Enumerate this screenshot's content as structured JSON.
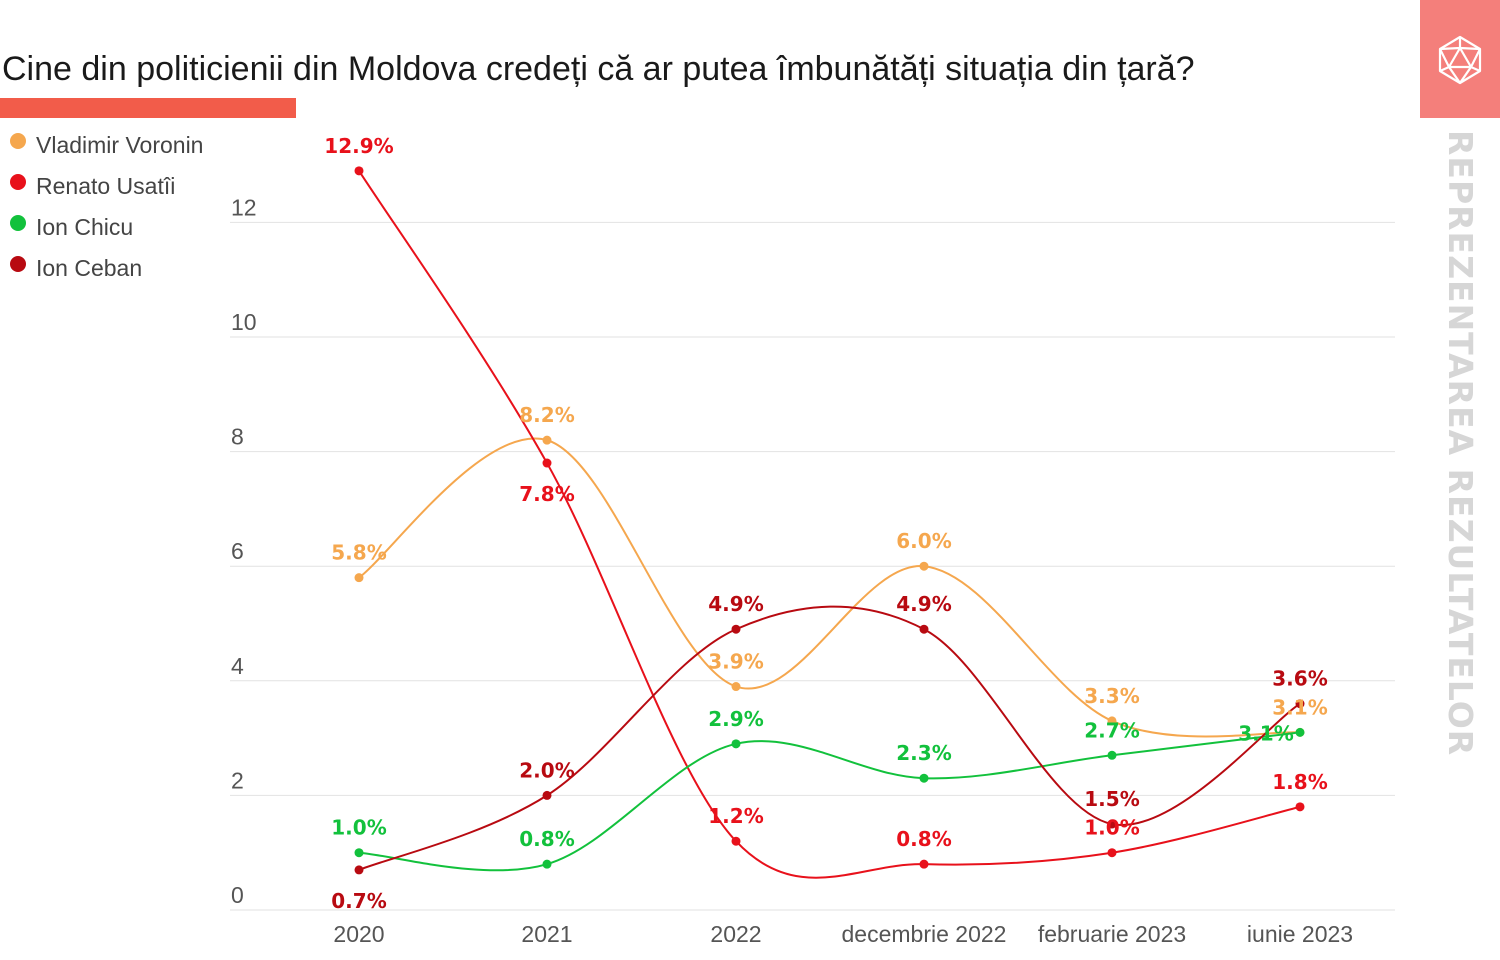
{
  "title": "Cine din politicienii din Moldova credeți că ar putea îmbunătăți situația din țară?",
  "side_label": "REPREZENTAREA REZULTATELOR",
  "legend": [
    {
      "label": "Vladimir Voronin",
      "color": "#f5a74e"
    },
    {
      "label": "Renato Usatîi",
      "color": "#e8111b"
    },
    {
      "label": "Ion Chicu",
      "color": "#12c13c"
    },
    {
      "label": "Ion Ceban",
      "color": "#b80a11"
    }
  ],
  "chart_data": {
    "type": "line",
    "title": "Cine din politicienii din Moldova credeți că ar putea îmbunătăți situația din țară?",
    "xlabel": "",
    "ylabel": "",
    "ylim": [
      0,
      13.5
    ],
    "yticks": [
      0,
      2,
      4,
      6,
      8,
      10,
      12
    ],
    "categories": [
      "2020",
      "2021",
      "2022",
      "decembrie 2022",
      "februarie 2023",
      "iunie 2023"
    ],
    "series": [
      {
        "name": "Vladimir Voronin",
        "color": "#f5a74e",
        "values": [
          5.8,
          8.2,
          3.9,
          6.0,
          3.3,
          3.1
        ],
        "labels": [
          "5.8%",
          "8.2%",
          "3.9%",
          "6.0%",
          "3.3%",
          "3.1%"
        ]
      },
      {
        "name": "Renato Usatîi",
        "color": "#e8111b",
        "values": [
          12.9,
          7.8,
          1.2,
          0.8,
          1.0,
          1.8
        ],
        "labels": [
          "12.9%",
          "7.8%",
          "1.2%",
          "0.8%",
          "1.0%",
          "1.8%"
        ]
      },
      {
        "name": "Ion Chicu",
        "color": "#12c13c",
        "values": [
          1.0,
          0.8,
          2.9,
          2.3,
          2.7,
          3.1
        ],
        "labels": [
          "1.0%",
          "0.8%",
          "2.9%",
          "2.3%",
          "2.7%",
          "3.1%"
        ]
      },
      {
        "name": "Ion Ceban",
        "color": "#b80a11",
        "values": [
          0.7,
          2.0,
          4.9,
          4.9,
          1.5,
          3.6
        ],
        "labels": [
          "0.7%",
          "2.0%",
          "4.9%",
          "4.9%",
          "1.5%",
          "3.6%"
        ]
      }
    ],
    "legend_position": "left",
    "grid": true
  }
}
